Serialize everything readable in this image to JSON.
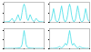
{
  "chart_data": [
    {
      "type": "line",
      "color": "#40dde6",
      "tick_labels": false,
      "x": [
        -10,
        -9.5,
        -9,
        -8.5,
        -8,
        -7.5,
        -7,
        -6.5,
        -6,
        -5.5,
        -5,
        -4.5,
        -4,
        -3.5,
        -3,
        -2.5,
        -2,
        -1.5,
        -1,
        -0.5,
        0,
        0.5,
        1,
        1.5,
        2,
        2.5,
        3,
        3.5,
        4,
        4.5,
        5,
        5.5,
        6,
        6.5,
        7,
        7.5,
        8,
        8.5,
        9,
        9.5,
        10
      ],
      "values": [
        0.02,
        0.03,
        0.02,
        0.04,
        0.03,
        0.05,
        0.08,
        0.15,
        0.22,
        0.12,
        0.05,
        0.08,
        0.15,
        0.3,
        0.42,
        0.25,
        0.1,
        0.2,
        0.55,
        0.85,
        1.0,
        0.85,
        0.55,
        0.2,
        0.1,
        0.25,
        0.42,
        0.3,
        0.15,
        0.08,
        0.05,
        0.12,
        0.22,
        0.15,
        0.08,
        0.05,
        0.03,
        0.04,
        0.02,
        0.03,
        0.02
      ],
      "xlim": [
        -10,
        10
      ],
      "ylim": [
        0,
        1.1
      ],
      "xticks": [
        -10,
        -5,
        0,
        5,
        10
      ],
      "yticks": [
        0,
        0.5,
        1
      ]
    },
    {
      "type": "line",
      "color": "#40dde6",
      "tick_labels": false,
      "x": [
        -10,
        -9.5,
        -9,
        -8.5,
        -8,
        -7.5,
        -7,
        -6.5,
        -6,
        -5.5,
        -5,
        -4.5,
        -4,
        -3.5,
        -3,
        -2.5,
        -2,
        -1.5,
        -1,
        -0.5,
        0,
        0.5,
        1,
        1.5,
        2,
        2.5,
        3,
        3.5,
        4,
        4.5,
        5,
        5.5,
        6,
        6.5,
        7,
        7.5,
        8,
        8.5,
        9,
        9.5,
        10
      ],
      "values": [
        0.03,
        0.08,
        0.2,
        0.5,
        0.75,
        0.45,
        0.15,
        0.05,
        0.04,
        0.1,
        0.3,
        0.65,
        0.9,
        0.55,
        0.2,
        0.06,
        0.04,
        0.15,
        0.4,
        0.8,
        1.0,
        0.8,
        0.4,
        0.15,
        0.04,
        0.06,
        0.2,
        0.55,
        0.9,
        0.65,
        0.3,
        0.1,
        0.04,
        0.05,
        0.15,
        0.45,
        0.75,
        0.5,
        0.2,
        0.08,
        0.03
      ],
      "xlim": [
        -10,
        10
      ],
      "ylim": [
        0,
        1.1
      ],
      "xticks": [
        -10,
        -5,
        0,
        5,
        10
      ],
      "yticks": [
        0,
        0.5,
        1
      ]
    },
    {
      "type": "line",
      "color": "#40dde6",
      "tick_labels": false,
      "x": [
        -10,
        -9.5,
        -9,
        -8.5,
        -8,
        -7.5,
        -7,
        -6.5,
        -6,
        -5.5,
        -5,
        -4.5,
        -4,
        -3.5,
        -3,
        -2.5,
        -2,
        -1.5,
        -1,
        -0.5,
        0,
        0.5,
        1,
        1.5,
        2,
        2.5,
        3,
        3.5,
        4,
        4.5,
        5,
        5.5,
        6,
        6.5,
        7,
        7.5,
        8,
        8.5,
        9,
        9.5,
        10
      ],
      "values": [
        0.02,
        0.02,
        0.03,
        0.02,
        0.02,
        0.03,
        0.02,
        0.03,
        0.02,
        0.03,
        0.03,
        0.04,
        0.03,
        0.04,
        0.04,
        0.05,
        0.06,
        0.1,
        0.25,
        0.65,
        1.0,
        0.65,
        0.25,
        0.1,
        0.06,
        0.05,
        0.04,
        0.04,
        0.03,
        0.04,
        0.03,
        0.03,
        0.02,
        0.03,
        0.02,
        0.03,
        0.02,
        0.02,
        0.03,
        0.02,
        0.02
      ],
      "xlim": [
        -10,
        10
      ],
      "ylim": [
        0,
        1.1
      ],
      "xticks": [
        -10,
        -5,
        0,
        5,
        10
      ],
      "yticks": [
        0,
        0.5,
        1
      ]
    },
    {
      "type": "line",
      "color": "#40dde6",
      "tick_labels": false,
      "x": [
        -10,
        -9.5,
        -9,
        -8.5,
        -8,
        -7.5,
        -7,
        -6.5,
        -6,
        -5.5,
        -5,
        -4.5,
        -4,
        -3.5,
        -3,
        -2.5,
        -2,
        -1.5,
        -1,
        -0.5,
        0,
        0.5,
        1,
        1.5,
        2,
        2.5,
        3,
        3.5,
        4,
        4.5,
        5,
        5.5,
        6,
        6.5,
        7,
        7.5,
        8,
        8.5,
        9,
        9.5,
        10
      ],
      "values": [
        0.02,
        0.02,
        0.03,
        0.02,
        0.03,
        0.03,
        0.04,
        0.05,
        0.07,
        0.1,
        0.12,
        0.08,
        0.05,
        0.08,
        0.15,
        0.25,
        0.3,
        0.2,
        0.3,
        0.7,
        1.0,
        0.7,
        0.3,
        0.2,
        0.3,
        0.25,
        0.15,
        0.08,
        0.05,
        0.08,
        0.12,
        0.1,
        0.07,
        0.05,
        0.04,
        0.03,
        0.03,
        0.02,
        0.03,
        0.02,
        0.02
      ],
      "xlim": [
        -10,
        10
      ],
      "ylim": [
        0,
        1.1
      ],
      "xticks": [
        -10,
        -5,
        0,
        5,
        10
      ],
      "yticks": [
        0,
        0.5,
        1
      ]
    }
  ]
}
